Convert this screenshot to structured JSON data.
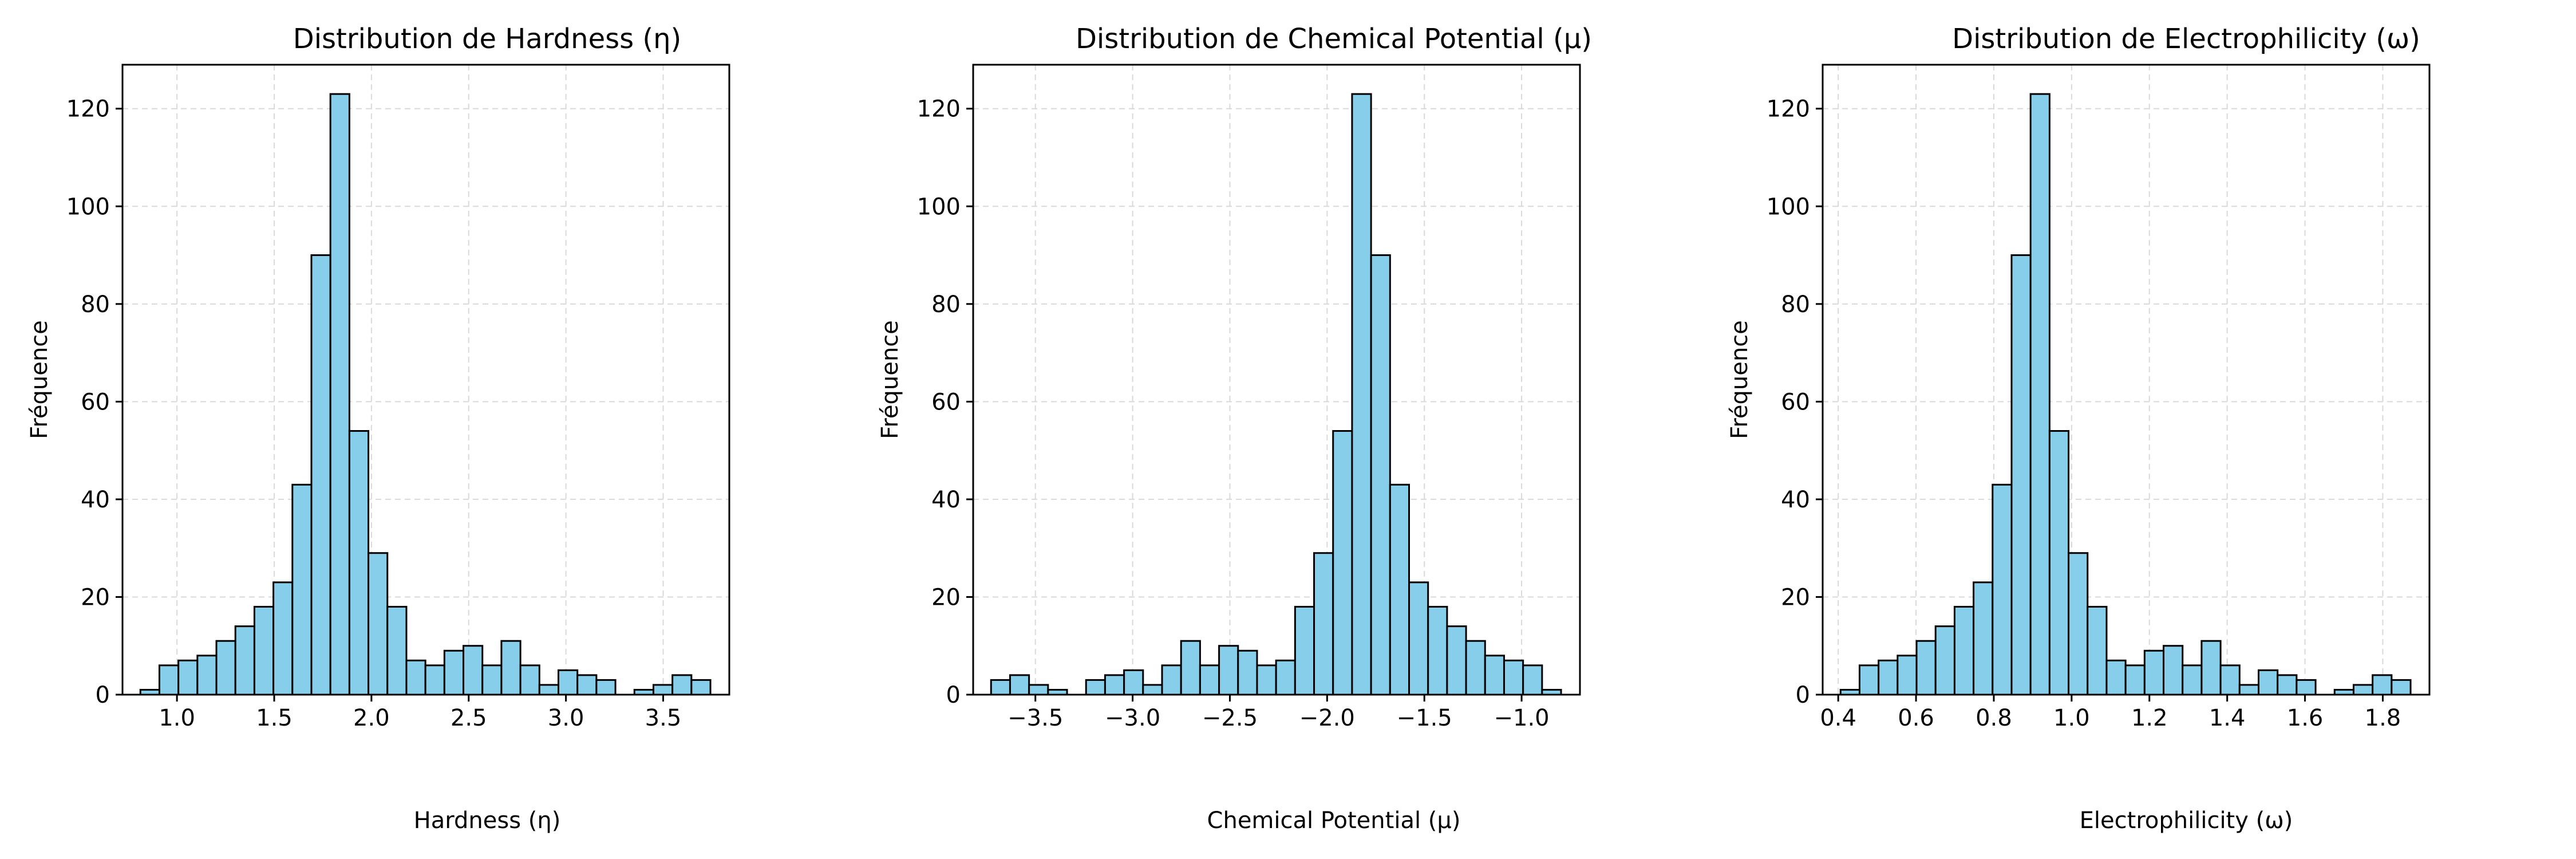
{
  "colors": {
    "bar_fill": "#87CEEB",
    "bar_edge": "#000000",
    "grid": "#d9d9d9",
    "axes": "#000000",
    "background": "#ffffff"
  },
  "chart_data": [
    {
      "type": "bar",
      "title": "Distribution de Hardness (η)",
      "xlabel": "Hardness (η)",
      "ylabel": "Fréquence",
      "grid": true,
      "xlim": [
        0.72,
        3.84
      ],
      "ylim": [
        0,
        129
      ],
      "xticks": [
        1.0,
        1.5,
        2.0,
        2.5,
        3.0,
        3.5
      ],
      "xtick_labels": [
        "1.0",
        "1.5",
        "2.0",
        "2.5",
        "3.0",
        "3.5"
      ],
      "yticks": [
        0,
        20,
        40,
        60,
        80,
        100,
        120
      ],
      "ytick_labels": [
        "0",
        "20",
        "40",
        "60",
        "80",
        "100",
        "120"
      ],
      "bin_start": 0.812,
      "bin_width": 0.0977,
      "values": [
        1,
        6,
        7,
        8,
        11,
        14,
        18,
        23,
        43,
        90,
        123,
        54,
        29,
        18,
        7,
        6,
        9,
        10,
        6,
        11,
        6,
        2,
        5,
        4,
        3,
        0,
        1,
        2,
        4,
        3
      ]
    },
    {
      "type": "bar",
      "title": "Distribution de Chemical Potential (μ)",
      "xlabel": "Chemical Potential (μ)",
      "ylabel": "Fréquence",
      "grid": true,
      "xlim": [
        -3.82,
        -0.7
      ],
      "ylim": [
        0,
        129
      ],
      "xticks": [
        -3.5,
        -3.0,
        -2.5,
        -2.0,
        -1.5,
        -1.0
      ],
      "xtick_labels": [
        "−3.5",
        "−3.0",
        "−2.5",
        "−2.0",
        "−1.5",
        "−1.0"
      ],
      "yticks": [
        0,
        20,
        40,
        60,
        80,
        100,
        120
      ],
      "ytick_labels": [
        "0",
        "20",
        "40",
        "60",
        "80",
        "100",
        "120"
      ],
      "bin_start": -3.728,
      "bin_width": 0.0977,
      "values": [
        3,
        4,
        2,
        1,
        0,
        3,
        4,
        5,
        2,
        6,
        11,
        6,
        10,
        9,
        6,
        7,
        18,
        29,
        54,
        123,
        90,
        43,
        23,
        18,
        14,
        11,
        8,
        7,
        6,
        1
      ]
    },
    {
      "type": "bar",
      "title": "Distribution de Electrophilicity (ω)",
      "xlabel": "Electrophilicity (ω)",
      "ylabel": "Fréquence",
      "grid": true,
      "xlim": [
        0.36,
        1.92
      ],
      "ylim": [
        0,
        129
      ],
      "xticks": [
        0.4,
        0.6,
        0.8,
        1.0,
        1.2,
        1.4,
        1.6,
        1.8
      ],
      "xtick_labels": [
        "0.4",
        "0.6",
        "0.8",
        "1.0",
        "1.2",
        "1.4",
        "1.6",
        "1.8"
      ],
      "yticks": [
        0,
        20,
        40,
        60,
        80,
        100,
        120
      ],
      "ytick_labels": [
        "0",
        "20",
        "40",
        "60",
        "80",
        "100",
        "120"
      ],
      "bin_start": 0.406,
      "bin_width": 0.04885,
      "values": [
        1,
        6,
        7,
        8,
        11,
        14,
        18,
        23,
        43,
        90,
        123,
        54,
        29,
        18,
        7,
        6,
        9,
        10,
        6,
        11,
        6,
        2,
        5,
        4,
        3,
        0,
        1,
        2,
        4,
        3
      ]
    }
  ]
}
